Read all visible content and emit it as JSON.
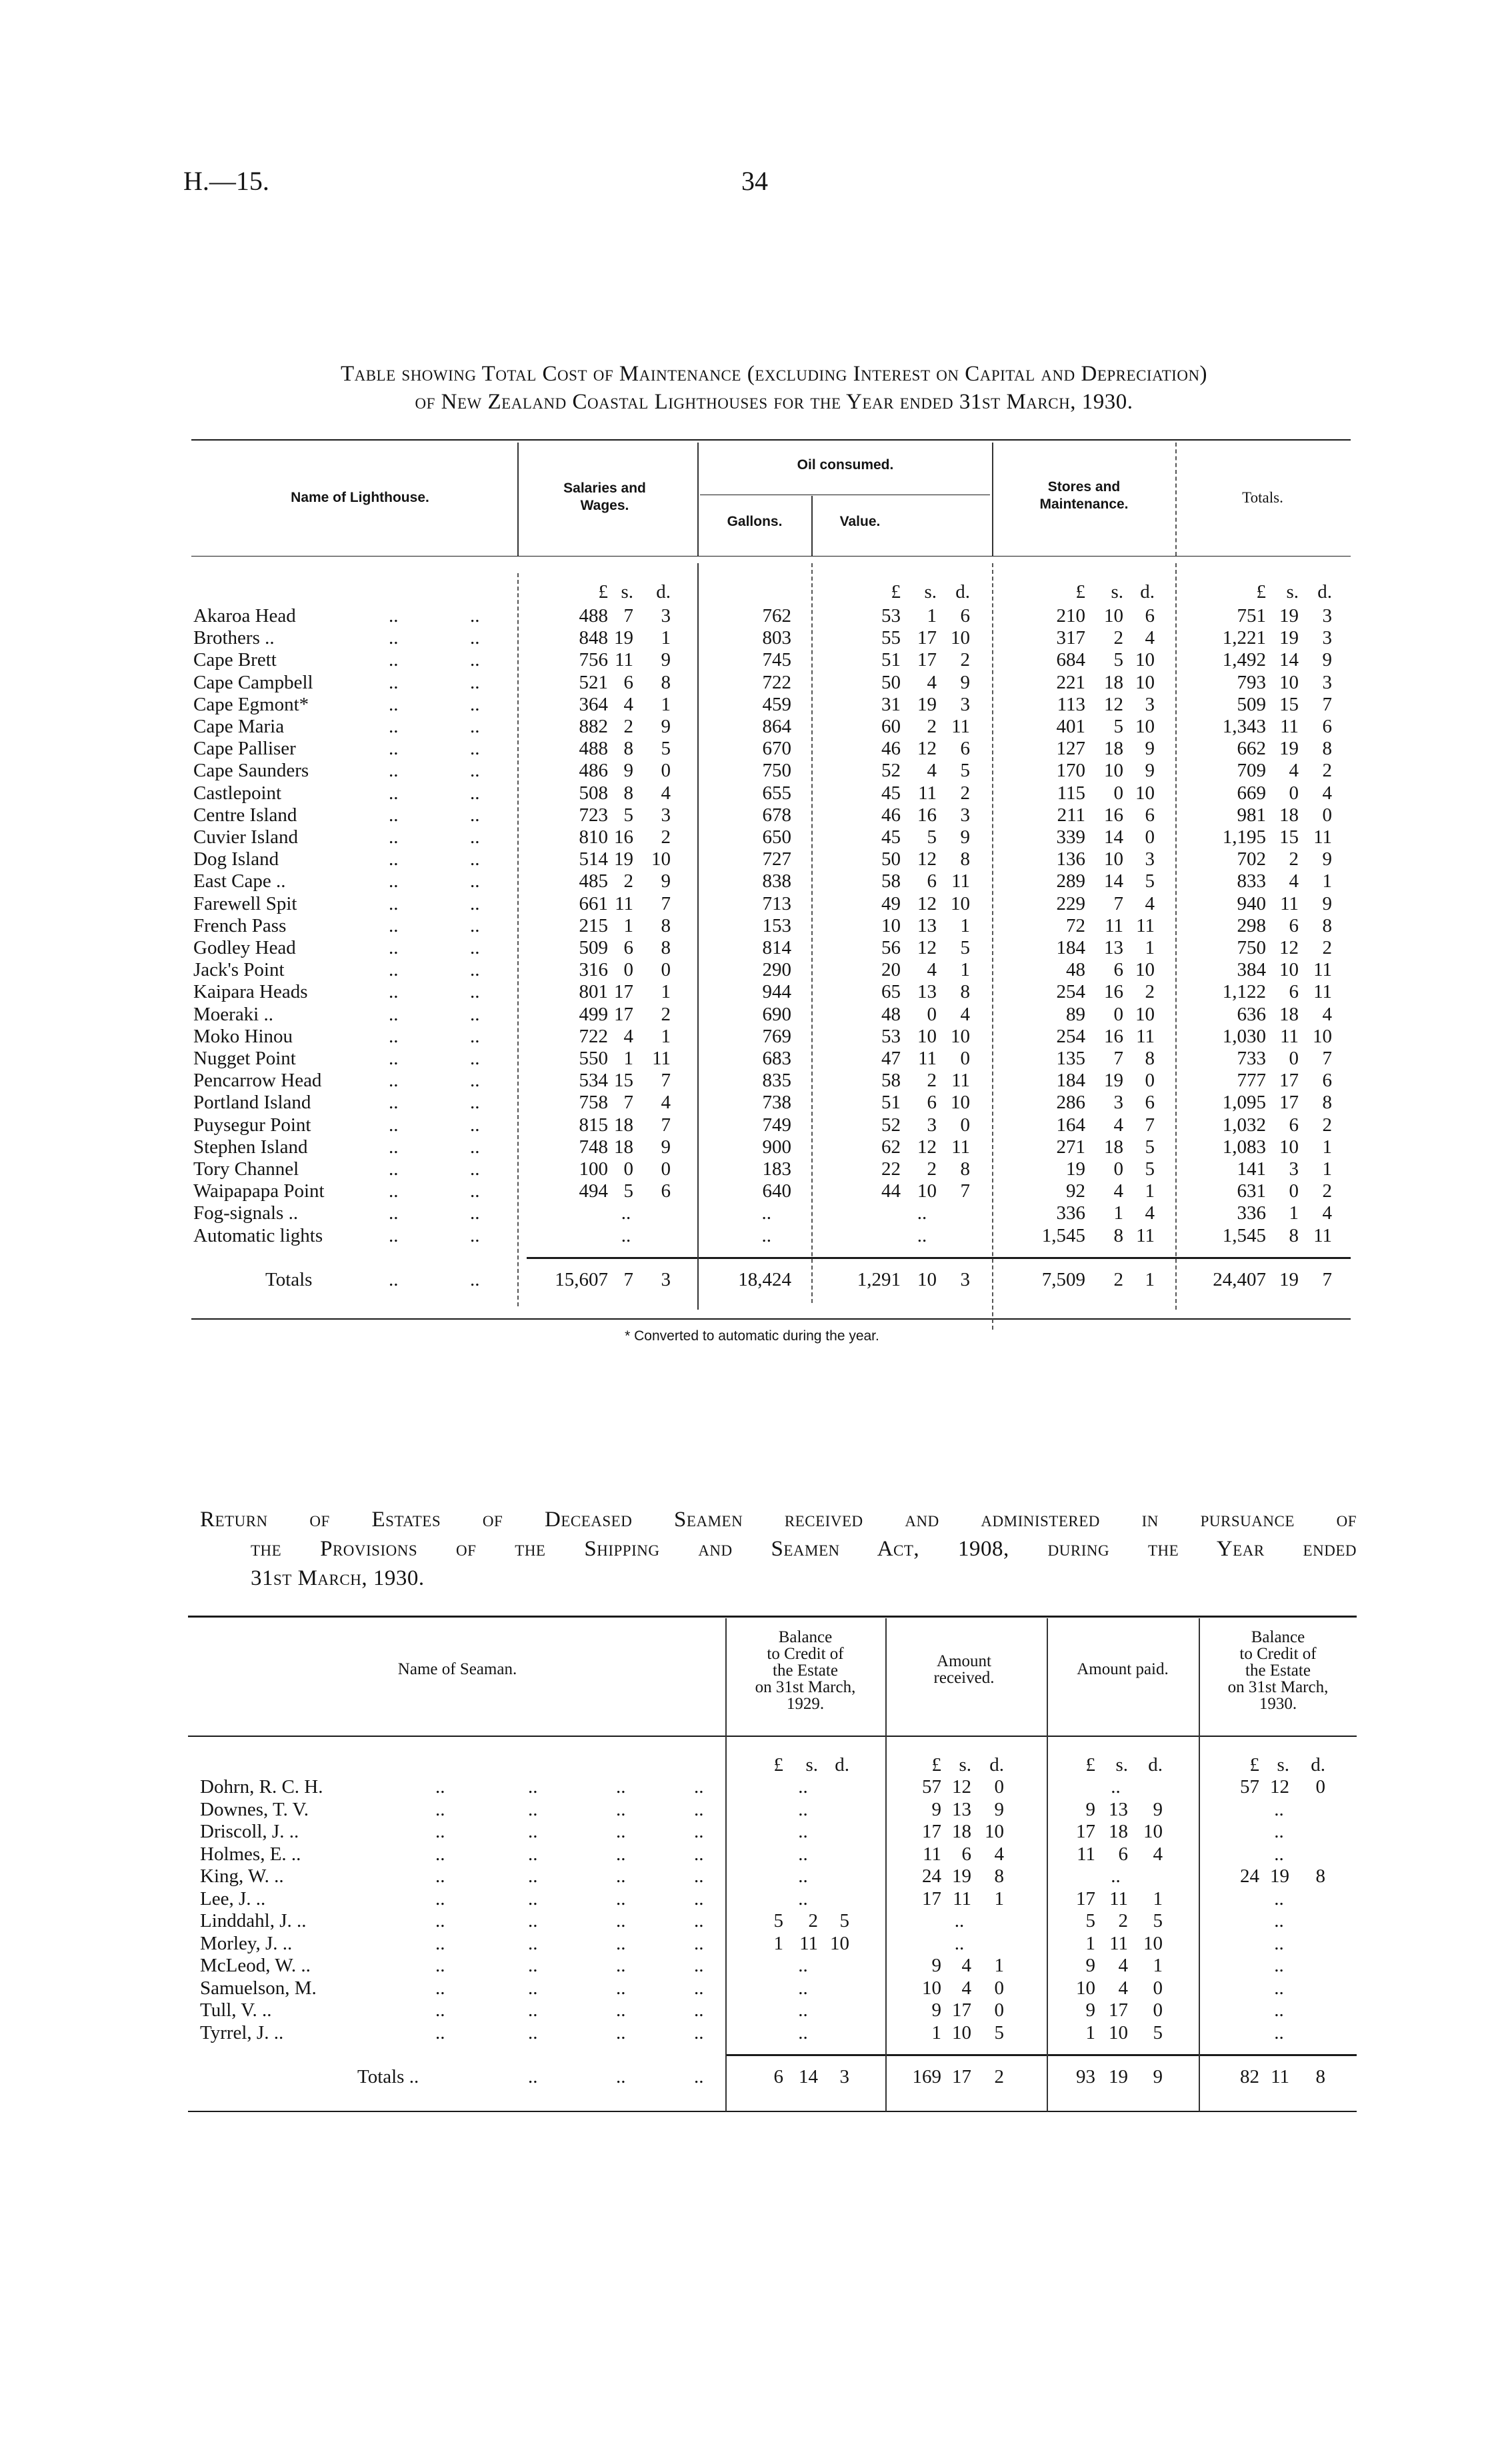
{
  "page_header": {
    "reference": "H.—15.",
    "page_number": "34"
  },
  "leader": "..",
  "lighthouse_table": {
    "title_lines": [
      "Table showing Total Cost of Maintenance (excluding Interest on Capital and Depreciation)",
      "of New Zealand Coastal Lighthouses for the Year ended 31st March, 1930."
    ],
    "headers": {
      "name": "Name of Lighthouse.",
      "salaries": [
        "Salaries and",
        "Wages."
      ],
      "oil": "Oil consumed.",
      "gallons": "Gallons.",
      "value": "Value.",
      "stores": [
        "Stores and",
        "Maintenance."
      ],
      "totals": "Totals."
    },
    "units": [
      "£",
      "s.",
      "d."
    ],
    "rows": [
      {
        "name": "Akaroa Head",
        "salaries": [
          "488",
          "7",
          "3"
        ],
        "gallons": "762",
        "value": [
          "53",
          "1",
          "6"
        ],
        "stores": [
          "210",
          "10",
          "6"
        ],
        "totals": [
          "751",
          "19",
          "3"
        ]
      },
      {
        "name": "Brothers ..",
        "salaries": [
          "848",
          "19",
          "1"
        ],
        "gallons": "803",
        "value": [
          "55",
          "17",
          "10"
        ],
        "stores": [
          "317",
          "2",
          "4"
        ],
        "totals": [
          "1,221",
          "19",
          "3"
        ]
      },
      {
        "name": "Cape Brett",
        "salaries": [
          "756",
          "11",
          "9"
        ],
        "gallons": "745",
        "value": [
          "51",
          "17",
          "2"
        ],
        "stores": [
          "684",
          "5",
          "10"
        ],
        "totals": [
          "1,492",
          "14",
          "9"
        ]
      },
      {
        "name": "Cape Campbell",
        "salaries": [
          "521",
          "6",
          "8"
        ],
        "gallons": "722",
        "value": [
          "50",
          "4",
          "9"
        ],
        "stores": [
          "221",
          "18",
          "10"
        ],
        "totals": [
          "793",
          "10",
          "3"
        ]
      },
      {
        "name": "Cape Egmont*",
        "salaries": [
          "364",
          "4",
          "1"
        ],
        "gallons": "459",
        "value": [
          "31",
          "19",
          "3"
        ],
        "stores": [
          "113",
          "12",
          "3"
        ],
        "totals": [
          "509",
          "15",
          "7"
        ]
      },
      {
        "name": "Cape Maria",
        "salaries": [
          "882",
          "2",
          "9"
        ],
        "gallons": "864",
        "value": [
          "60",
          "2",
          "11"
        ],
        "stores": [
          "401",
          "5",
          "10"
        ],
        "totals": [
          "1,343",
          "11",
          "6"
        ]
      },
      {
        "name": "Cape Palliser",
        "salaries": [
          "488",
          "8",
          "5"
        ],
        "gallons": "670",
        "value": [
          "46",
          "12",
          "6"
        ],
        "stores": [
          "127",
          "18",
          "9"
        ],
        "totals": [
          "662",
          "19",
          "8"
        ]
      },
      {
        "name": "Cape Saunders",
        "salaries": [
          "486",
          "9",
          "0"
        ],
        "gallons": "750",
        "value": [
          "52",
          "4",
          "5"
        ],
        "stores": [
          "170",
          "10",
          "9"
        ],
        "totals": [
          "709",
          "4",
          "2"
        ]
      },
      {
        "name": "Castlepoint",
        "salaries": [
          "508",
          "8",
          "4"
        ],
        "gallons": "655",
        "value": [
          "45",
          "11",
          "2"
        ],
        "stores": [
          "115",
          "0",
          "10"
        ],
        "totals": [
          "669",
          "0",
          "4"
        ]
      },
      {
        "name": "Centre Island",
        "salaries": [
          "723",
          "5",
          "3"
        ],
        "gallons": "678",
        "value": [
          "46",
          "16",
          "3"
        ],
        "stores": [
          "211",
          "16",
          "6"
        ],
        "totals": [
          "981",
          "18",
          "0"
        ]
      },
      {
        "name": "Cuvier Island",
        "salaries": [
          "810",
          "16",
          "2"
        ],
        "gallons": "650",
        "value": [
          "45",
          "5",
          "9"
        ],
        "stores": [
          "339",
          "14",
          "0"
        ],
        "totals": [
          "1,195",
          "15",
          "11"
        ]
      },
      {
        "name": "Dog Island",
        "salaries": [
          "514",
          "19",
          "10"
        ],
        "gallons": "727",
        "value": [
          "50",
          "12",
          "8"
        ],
        "stores": [
          "136",
          "10",
          "3"
        ],
        "totals": [
          "702",
          "2",
          "9"
        ]
      },
      {
        "name": "East Cape ..",
        "salaries": [
          "485",
          "2",
          "9"
        ],
        "gallons": "838",
        "value": [
          "58",
          "6",
          "11"
        ],
        "stores": [
          "289",
          "14",
          "5"
        ],
        "totals": [
          "833",
          "4",
          "1"
        ]
      },
      {
        "name": "Farewell Spit",
        "salaries": [
          "661",
          "11",
          "7"
        ],
        "gallons": "713",
        "value": [
          "49",
          "12",
          "10"
        ],
        "stores": [
          "229",
          "7",
          "4"
        ],
        "totals": [
          "940",
          "11",
          "9"
        ]
      },
      {
        "name": "French Pass",
        "salaries": [
          "215",
          "1",
          "8"
        ],
        "gallons": "153",
        "value": [
          "10",
          "13",
          "1"
        ],
        "stores": [
          "72",
          "11",
          "11"
        ],
        "totals": [
          "298",
          "6",
          "8"
        ]
      },
      {
        "name": "Godley Head",
        "salaries": [
          "509",
          "6",
          "8"
        ],
        "gallons": "814",
        "value": [
          "56",
          "12",
          "5"
        ],
        "stores": [
          "184",
          "13",
          "1"
        ],
        "totals": [
          "750",
          "12",
          "2"
        ]
      },
      {
        "name": "Jack's Point",
        "salaries": [
          "316",
          "0",
          "0"
        ],
        "gallons": "290",
        "value": [
          "20",
          "4",
          "1"
        ],
        "stores": [
          "48",
          "6",
          "10"
        ],
        "totals": [
          "384",
          "10",
          "11"
        ]
      },
      {
        "name": "Kaipara Heads",
        "salaries": [
          "801",
          "17",
          "1"
        ],
        "gallons": "944",
        "value": [
          "65",
          "13",
          "8"
        ],
        "stores": [
          "254",
          "16",
          "2"
        ],
        "totals": [
          "1,122",
          "6",
          "11"
        ]
      },
      {
        "name": "Moeraki ..",
        "salaries": [
          "499",
          "17",
          "2"
        ],
        "gallons": "690",
        "value": [
          "48",
          "0",
          "4"
        ],
        "stores": [
          "89",
          "0",
          "10"
        ],
        "totals": [
          "636",
          "18",
          "4"
        ]
      },
      {
        "name": "Moko Hinou",
        "salaries": [
          "722",
          "4",
          "1"
        ],
        "gallons": "769",
        "value": [
          "53",
          "10",
          "10"
        ],
        "stores": [
          "254",
          "16",
          "11"
        ],
        "totals": [
          "1,030",
          "11",
          "10"
        ]
      },
      {
        "name": "Nugget Point",
        "salaries": [
          "550",
          "1",
          "11"
        ],
        "gallons": "683",
        "value": [
          "47",
          "11",
          "0"
        ],
        "stores": [
          "135",
          "7",
          "8"
        ],
        "totals": [
          "733",
          "0",
          "7"
        ]
      },
      {
        "name": "Pencarrow Head",
        "salaries": [
          "534",
          "15",
          "7"
        ],
        "gallons": "835",
        "value": [
          "58",
          "2",
          "11"
        ],
        "stores": [
          "184",
          "19",
          "0"
        ],
        "totals": [
          "777",
          "17",
          "6"
        ]
      },
      {
        "name": "Portland Island",
        "salaries": [
          "758",
          "7",
          "4"
        ],
        "gallons": "738",
        "value": [
          "51",
          "6",
          "10"
        ],
        "stores": [
          "286",
          "3",
          "6"
        ],
        "totals": [
          "1,095",
          "17",
          "8"
        ]
      },
      {
        "name": "Puysegur Point",
        "salaries": [
          "815",
          "18",
          "7"
        ],
        "gallons": "749",
        "value": [
          "52",
          "3",
          "0"
        ],
        "stores": [
          "164",
          "4",
          "7"
        ],
        "totals": [
          "1,032",
          "6",
          "2"
        ]
      },
      {
        "name": "Stephen Island",
        "salaries": [
          "748",
          "18",
          "9"
        ],
        "gallons": "900",
        "value": [
          "62",
          "12",
          "11"
        ],
        "stores": [
          "271",
          "18",
          "5"
        ],
        "totals": [
          "1,083",
          "10",
          "1"
        ]
      },
      {
        "name": "Tory Channel",
        "salaries": [
          "100",
          "0",
          "0"
        ],
        "gallons": "183",
        "value": [
          "22",
          "2",
          "8"
        ],
        "stores": [
          "19",
          "0",
          "5"
        ],
        "totals": [
          "141",
          "3",
          "1"
        ]
      },
      {
        "name": "Waipapapa Point",
        "salaries": [
          "494",
          "5",
          "6"
        ],
        "gallons": "640",
        "value": [
          "44",
          "10",
          "7"
        ],
        "stores": [
          "92",
          "4",
          "1"
        ],
        "totals": [
          "631",
          "0",
          "2"
        ]
      },
      {
        "name": "Fog-signals ..",
        "salaries": "..",
        "gallons": "..",
        "value": "..",
        "stores": [
          "336",
          "1",
          "4"
        ],
        "totals": [
          "336",
          "1",
          "4"
        ]
      },
      {
        "name": "Automatic lights",
        "salaries": "..",
        "gallons": "..",
        "value": "..",
        "stores": [
          "1,545",
          "8",
          "11"
        ],
        "totals": [
          "1,545",
          "8",
          "11"
        ]
      }
    ],
    "totals_row": {
      "name": "Totals",
      "salaries": [
        "15,607",
        "7",
        "3"
      ],
      "gallons": "18,424",
      "value": [
        "1,291",
        "10",
        "3"
      ],
      "stores": [
        "7,509",
        "2",
        "1"
      ],
      "totals": [
        "24,407",
        "19",
        "7"
      ]
    },
    "footnote": "* Converted to automatic during the year."
  },
  "seamen_table": {
    "title_lines": [
      "Return of Estates of Deceased Seamen received and administered in pursuance of",
      "the Provisions of the Shipping and Seamen Act, 1908, during the Year ended",
      "31st March, 1930."
    ],
    "headers": {
      "name": "Name of Seaman.",
      "balance_1929": [
        "Balance",
        "to Credit of",
        "the Estate",
        "on 31st March,",
        "1929."
      ],
      "received": [
        "Amount",
        "received."
      ],
      "paid": "Amount paid.",
      "balance_1930": [
        "Balance",
        "to Credit of",
        "the Estate",
        "on 31st March,",
        "1930."
      ]
    },
    "units": [
      "£",
      "s.",
      "d."
    ],
    "rows": [
      {
        "name": "Dohrn, R. C. H.",
        "balance_1929": "..",
        "received": [
          "57",
          "12",
          "0"
        ],
        "paid": "..",
        "balance_1930": [
          "57",
          "12",
          "0"
        ]
      },
      {
        "name": "Downes, T. V.",
        "balance_1929": "..",
        "received": [
          "9",
          "13",
          "9"
        ],
        "paid": [
          "9",
          "13",
          "9"
        ],
        "balance_1930": ".."
      },
      {
        "name": "Driscoll, J. ..",
        "balance_1929": "..",
        "received": [
          "17",
          "18",
          "10"
        ],
        "paid": [
          "17",
          "18",
          "10"
        ],
        "balance_1930": ".."
      },
      {
        "name": "Holmes, E. ..",
        "balance_1929": "..",
        "received": [
          "11",
          "6",
          "4"
        ],
        "paid": [
          "11",
          "6",
          "4"
        ],
        "balance_1930": ".."
      },
      {
        "name": "King, W. ..",
        "balance_1929": "..",
        "received": [
          "24",
          "19",
          "8"
        ],
        "paid": "..",
        "balance_1930": [
          "24",
          "19",
          "8"
        ]
      },
      {
        "name": "Lee, J. ..",
        "balance_1929": "..",
        "received": [
          "17",
          "11",
          "1"
        ],
        "paid": [
          "17",
          "11",
          "1"
        ],
        "balance_1930": ".."
      },
      {
        "name": "Linddahl, J. ..",
        "balance_1929": [
          "5",
          "2",
          "5"
        ],
        "received": "..",
        "paid": [
          "5",
          "2",
          "5"
        ],
        "balance_1930": ".."
      },
      {
        "name": "Morley, J. ..",
        "balance_1929": [
          "1",
          "11",
          "10"
        ],
        "received": "..",
        "paid": [
          "1",
          "11",
          "10"
        ],
        "balance_1930": ".."
      },
      {
        "name": "McLeod, W. ..",
        "balance_1929": "..",
        "received": [
          "9",
          "4",
          "1"
        ],
        "paid": [
          "9",
          "4",
          "1"
        ],
        "balance_1930": ".."
      },
      {
        "name": "Samuelson, M.",
        "balance_1929": "..",
        "received": [
          "10",
          "4",
          "0"
        ],
        "paid": [
          "10",
          "4",
          "0"
        ],
        "balance_1930": ".."
      },
      {
        "name": "Tull, V. ..",
        "balance_1929": "..",
        "received": [
          "9",
          "17",
          "0"
        ],
        "paid": [
          "9",
          "17",
          "0"
        ],
        "balance_1930": ".."
      },
      {
        "name": "Tyrrel, J. ..",
        "balance_1929": "..",
        "received": [
          "1",
          "10",
          "5"
        ],
        "paid": [
          "1",
          "10",
          "5"
        ],
        "balance_1930": ".."
      }
    ],
    "totals_row": {
      "name": "Totals ..",
      "balance_1929": [
        "6",
        "14",
        "3"
      ],
      "received": [
        "169",
        "17",
        "2"
      ],
      "paid": [
        "93",
        "19",
        "9"
      ],
      "balance_1930": [
        "82",
        "11",
        "8"
      ]
    }
  }
}
